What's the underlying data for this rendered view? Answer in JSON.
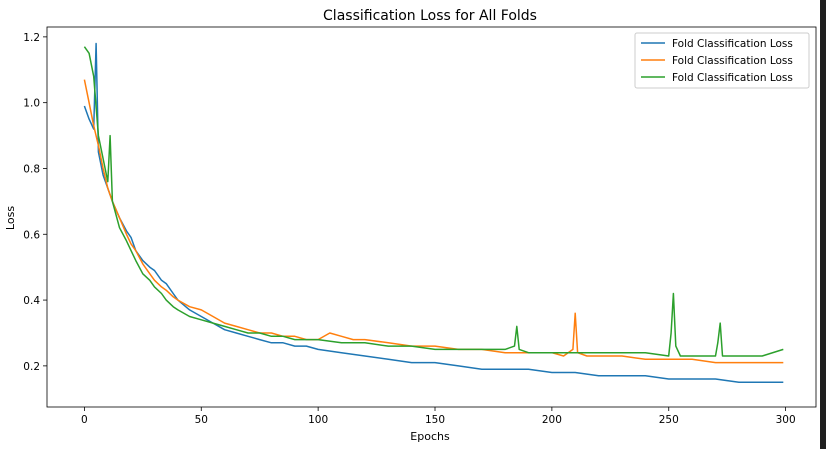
{
  "chart_data": {
    "type": "line",
    "title": "Classification Loss for All Folds",
    "xlabel": "Epochs",
    "ylabel": "Loss",
    "xlim": [
      -16,
      313
    ],
    "ylim": [
      0.075,
      1.23
    ],
    "xticks": [
      0,
      50,
      100,
      150,
      200,
      250,
      300
    ],
    "yticks": [
      0.2,
      0.4,
      0.6,
      0.8,
      1.0,
      1.2
    ],
    "xtick_labels": [
      "0",
      "50",
      "100",
      "150",
      "200",
      "250",
      "300"
    ],
    "ytick_labels": [
      "0.2",
      "0.4",
      "0.6",
      "0.8",
      "1.0",
      "1.2"
    ],
    "grid": false,
    "legend_position": "top-right",
    "series": [
      {
        "name": "Fold Classification Loss",
        "color": "#1f77b4",
        "x": [
          0,
          2,
          4,
          5,
          6,
          8,
          10,
          12,
          15,
          18,
          20,
          22,
          25,
          28,
          30,
          33,
          35,
          38,
          40,
          45,
          50,
          55,
          60,
          65,
          70,
          75,
          80,
          85,
          90,
          95,
          100,
          110,
          120,
          130,
          140,
          150,
          160,
          170,
          180,
          190,
          200,
          210,
          220,
          230,
          240,
          250,
          260,
          270,
          280,
          290,
          299
        ],
        "y": [
          0.99,
          0.95,
          0.92,
          1.18,
          0.85,
          0.78,
          0.74,
          0.7,
          0.65,
          0.61,
          0.59,
          0.55,
          0.52,
          0.5,
          0.49,
          0.46,
          0.45,
          0.42,
          0.4,
          0.37,
          0.35,
          0.33,
          0.31,
          0.3,
          0.29,
          0.28,
          0.27,
          0.27,
          0.26,
          0.26,
          0.25,
          0.24,
          0.23,
          0.22,
          0.21,
          0.21,
          0.2,
          0.19,
          0.19,
          0.19,
          0.18,
          0.18,
          0.17,
          0.17,
          0.17,
          0.16,
          0.16,
          0.16,
          0.15,
          0.15,
          0.15
        ]
      },
      {
        "name": "Fold Classification Loss",
        "color": "#ff7f0e",
        "x": [
          0,
          2,
          4,
          6,
          8,
          10,
          12,
          15,
          18,
          20,
          22,
          25,
          28,
          30,
          33,
          35,
          38,
          40,
          45,
          50,
          55,
          60,
          65,
          70,
          75,
          80,
          85,
          90,
          95,
          100,
          105,
          110,
          115,
          120,
          130,
          140,
          150,
          160,
          170,
          180,
          190,
          200,
          205,
          209,
          210,
          211,
          215,
          220,
          230,
          240,
          250,
          260,
          270,
          280,
          290,
          299
        ],
        "y": [
          1.07,
          1.0,
          0.93,
          0.87,
          0.8,
          0.74,
          0.7,
          0.65,
          0.6,
          0.57,
          0.55,
          0.51,
          0.48,
          0.46,
          0.44,
          0.43,
          0.41,
          0.4,
          0.38,
          0.37,
          0.35,
          0.33,
          0.32,
          0.31,
          0.3,
          0.3,
          0.29,
          0.29,
          0.28,
          0.28,
          0.3,
          0.29,
          0.28,
          0.28,
          0.27,
          0.26,
          0.26,
          0.25,
          0.25,
          0.24,
          0.24,
          0.24,
          0.23,
          0.25,
          0.36,
          0.24,
          0.23,
          0.23,
          0.23,
          0.22,
          0.22,
          0.22,
          0.21,
          0.21,
          0.21,
          0.21
        ]
      },
      {
        "name": "Fold Classification Loss",
        "color": "#2ca02c",
        "x": [
          0,
          2,
          4,
          6,
          8,
          10,
          11,
          12,
          15,
          18,
          20,
          22,
          25,
          28,
          30,
          33,
          35,
          38,
          40,
          45,
          50,
          55,
          60,
          65,
          70,
          75,
          80,
          85,
          90,
          95,
          100,
          110,
          120,
          130,
          140,
          150,
          160,
          170,
          180,
          184,
          185,
          186,
          190,
          200,
          210,
          220,
          230,
          240,
          250,
          251,
          252,
          253,
          255,
          260,
          270,
          271,
          272,
          273,
          280,
          290,
          299
        ],
        "y": [
          1.17,
          1.15,
          1.08,
          0.9,
          0.83,
          0.76,
          0.9,
          0.7,
          0.62,
          0.58,
          0.55,
          0.52,
          0.48,
          0.46,
          0.44,
          0.42,
          0.4,
          0.38,
          0.37,
          0.35,
          0.34,
          0.33,
          0.32,
          0.31,
          0.3,
          0.3,
          0.29,
          0.29,
          0.28,
          0.28,
          0.28,
          0.27,
          0.27,
          0.26,
          0.26,
          0.25,
          0.25,
          0.25,
          0.25,
          0.26,
          0.32,
          0.25,
          0.24,
          0.24,
          0.24,
          0.24,
          0.24,
          0.24,
          0.23,
          0.3,
          0.42,
          0.26,
          0.23,
          0.23,
          0.23,
          0.27,
          0.33,
          0.23,
          0.23,
          0.23,
          0.25
        ]
      }
    ]
  }
}
